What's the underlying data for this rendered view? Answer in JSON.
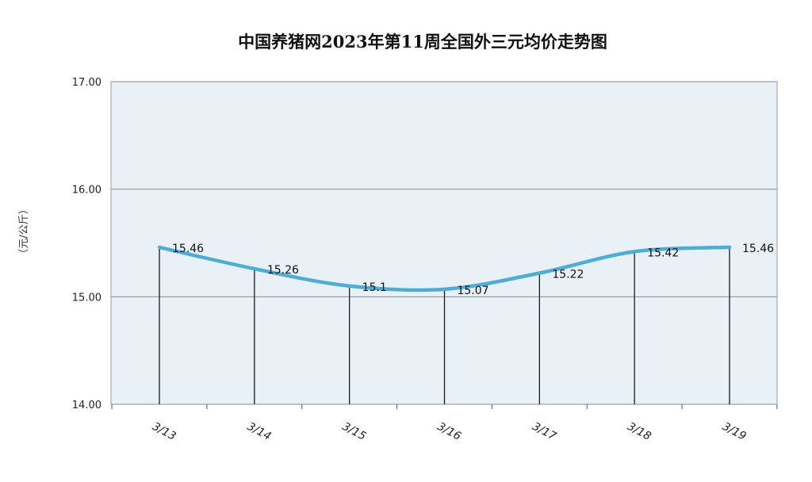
{
  "chart_data": {
    "type": "line",
    "title": "中国养猪网2023年第11周全国外三元均价走势图",
    "ylabel": "（元/公斤）",
    "xlabel": "",
    "categories": [
      "3/13",
      "3/14",
      "3/15",
      "3/16",
      "3/17",
      "3/18",
      "3/19"
    ],
    "values": [
      15.46,
      15.26,
      15.1,
      15.07,
      15.22,
      15.42,
      15.46
    ],
    "data_labels": [
      "15.46",
      "15.26",
      "15.1",
      "15.07",
      "15.22",
      "15.42",
      "15.46"
    ],
    "ylim": [
      14.0,
      17.0
    ],
    "yticks": [
      "14.00",
      "15.00",
      "16.00",
      "17.00"
    ],
    "ytick_values": [
      14,
      15,
      16,
      17
    ],
    "grid": true,
    "drop_lines": true,
    "colors": {
      "line": "#4aaed6",
      "plot_background": "#e9f0f6",
      "gridline": "#8c8c8c",
      "drop_line": "#1a1a1a"
    }
  }
}
